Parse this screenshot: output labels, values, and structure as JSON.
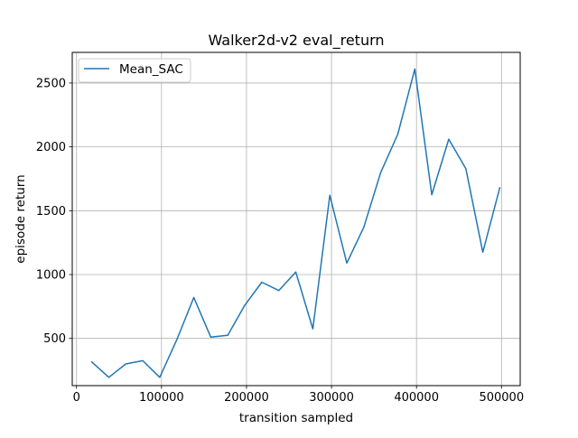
{
  "chart_data": {
    "type": "line",
    "title": "Walker2d-v2 eval_return",
    "xlabel": "transition sampled",
    "ylabel": "episode return",
    "xlim": [
      -5000,
      522000
    ],
    "ylim": [
      130,
      2740
    ],
    "xticks": [
      0,
      100000,
      200000,
      300000,
      400000,
      500000
    ],
    "xtick_labels": [
      "0",
      "100000",
      "200000",
      "300000",
      "400000",
      "500000"
    ],
    "yticks": [
      500,
      1000,
      1500,
      2000,
      2500
    ],
    "ytick_labels": [
      "500",
      "1000",
      "1500",
      "2000",
      "2500"
    ],
    "grid": true,
    "legend_position": "upper-left",
    "series": [
      {
        "name": "Mean_SAC",
        "color": "#1f77b4",
        "x": [
          18000,
          38000,
          58000,
          78000,
          98000,
          118000,
          138000,
          158000,
          178000,
          198000,
          218000,
          238000,
          258000,
          278000,
          298000,
          318000,
          338000,
          358000,
          378000,
          398000,
          418000,
          438000,
          458000,
          478000,
          498000
        ],
        "y": [
          315,
          195,
          300,
          325,
          195,
          490,
          820,
          510,
          525,
          760,
          940,
          875,
          1020,
          575,
          1620,
          1090,
          1370,
          1800,
          2100,
          2610,
          1625,
          2060,
          1830,
          1175,
          1680
        ]
      }
    ]
  }
}
